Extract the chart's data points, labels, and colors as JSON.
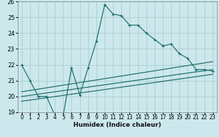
{
  "title": "",
  "xlabel": "Humidex (Indice chaleur)",
  "background_color": "#cce8ec",
  "grid_color": "#aacccc",
  "line_color": "#1e6e6e",
  "xlim": [
    -0.5,
    23.5
  ],
  "ylim": [
    19,
    26
  ],
  "yticks": [
    19,
    20,
    21,
    22,
    23,
    24,
    25,
    26
  ],
  "xticks": [
    0,
    1,
    2,
    3,
    4,
    5,
    6,
    7,
    8,
    9,
    10,
    11,
    12,
    13,
    14,
    15,
    16,
    17,
    18,
    19,
    20,
    21,
    22,
    23
  ],
  "main_x": [
    0,
    1,
    2,
    3,
    4,
    5,
    6,
    7,
    8,
    9,
    10,
    11,
    12,
    13,
    14,
    15,
    16,
    17,
    18,
    19,
    20,
    21,
    22,
    23
  ],
  "main_y": [
    22.0,
    21.0,
    20.0,
    20.0,
    18.8,
    18.8,
    21.8,
    20.1,
    21.8,
    23.5,
    25.8,
    25.2,
    25.1,
    24.5,
    24.5,
    24.0,
    23.6,
    23.2,
    23.3,
    22.7,
    22.4,
    21.7,
    21.7,
    21.6
  ],
  "trend1_x": [
    0,
    23
  ],
  "trend1_y": [
    20.3,
    22.2
  ],
  "trend2_x": [
    0,
    23
  ],
  "trend2_y": [
    20.0,
    21.7
  ],
  "trend3_x": [
    0,
    23
  ],
  "trend3_y": [
    19.7,
    21.4
  ]
}
